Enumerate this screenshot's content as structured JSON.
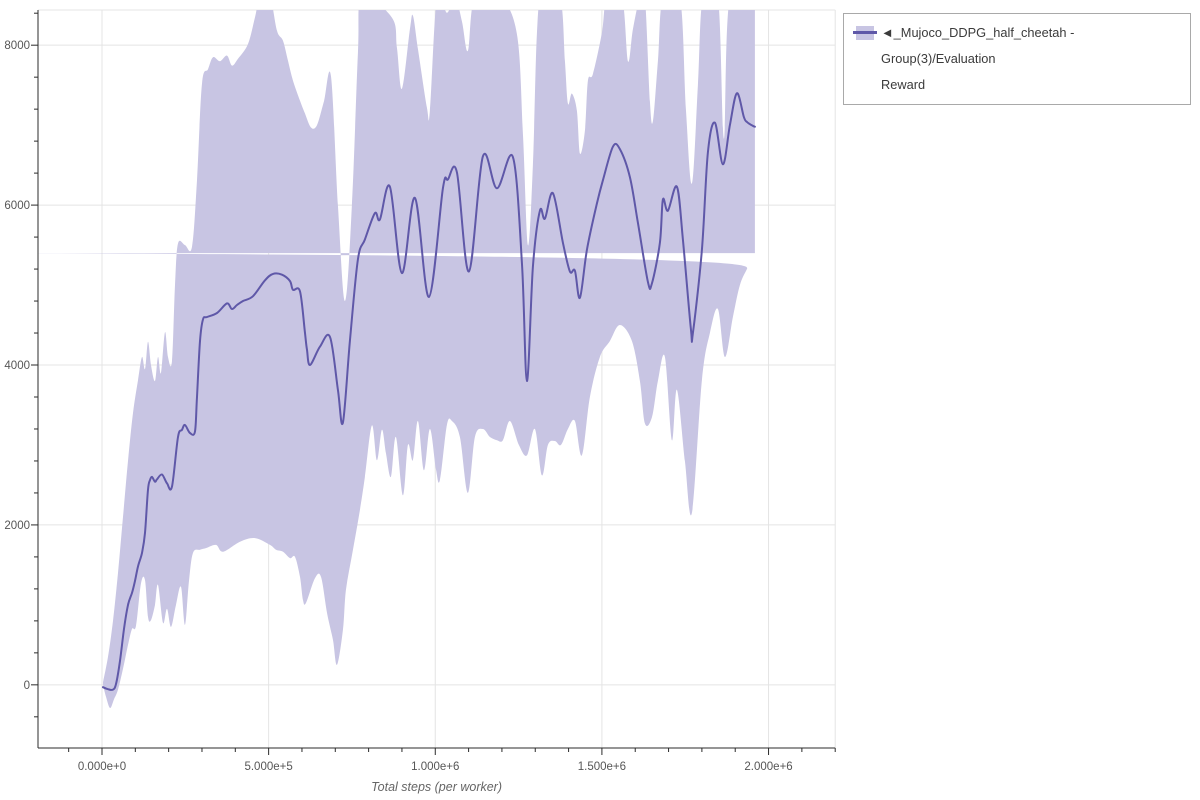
{
  "chart": {
    "background": "#ffffff",
    "grid_color": "#e4e4e4",
    "spine_color": "#2b2b2b",
    "tick_label_color": "#565656",
    "axis_title_color": "#666666"
  },
  "legend": {
    "label_lines": [
      "◄_Mujoco_DDPG_half_cheetah - Group(3)/Evaluation",
      "Reward"
    ],
    "full_label": "◄_Mujoco_DDPG_half_cheetah - Group(3)/Evaluation Reward",
    "border_color": "#a9a9a9"
  },
  "chart_data": {
    "type": "line",
    "title": "",
    "xlabel": "Total steps (per worker)",
    "ylabel": "",
    "xlim": [
      -192000,
      2200000
    ],
    "ylim": [
      -790,
      8440
    ],
    "x_ticks_major": [
      0,
      500000,
      1000000,
      1500000,
      2000000
    ],
    "x_tick_labels": [
      "0.000e+0",
      "5.000e+5",
      "1.000e+6",
      "1.500e+6",
      "2.000e+6"
    ],
    "x_minor_step": 100000,
    "y_ticks_major": [
      0,
      2000,
      4000,
      6000,
      8000
    ],
    "y_tick_labels": [
      "0",
      "2000",
      "4000",
      "6000",
      "8000"
    ],
    "y_minor_step": 400,
    "grid": "major",
    "legend_position": "outside-top-right",
    "series": [
      {
        "name": "◄_Mujoco_DDPG_half_cheetah - Group(3)/Evaluation Reward",
        "color": "#5f58a8",
        "band_color": "#c8c5e3",
        "x_unit_note": "x values in thousands of steps",
        "mean": [
          [
            3,
            -30
          ],
          [
            18,
            -55
          ],
          [
            33,
            -60
          ],
          [
            42,
            10
          ],
          [
            54,
            300
          ],
          [
            66,
            700
          ],
          [
            78,
            1000
          ],
          [
            90,
            1150
          ],
          [
            99,
            1300
          ],
          [
            108,
            1480
          ],
          [
            120,
            1650
          ],
          [
            129,
            1900
          ],
          [
            138,
            2440
          ],
          [
            144,
            2560
          ],
          [
            150,
            2600
          ],
          [
            159,
            2540
          ],
          [
            165,
            2570
          ],
          [
            180,
            2630
          ],
          [
            195,
            2520
          ],
          [
            210,
            2480
          ],
          [
            228,
            3100
          ],
          [
            240,
            3190
          ],
          [
            249,
            3250
          ],
          [
            264,
            3150
          ],
          [
            279,
            3170
          ],
          [
            285,
            3600
          ],
          [
            294,
            4300
          ],
          [
            303,
            4570
          ],
          [
            315,
            4600
          ],
          [
            345,
            4650
          ],
          [
            375,
            4770
          ],
          [
            390,
            4700
          ],
          [
            405,
            4750
          ],
          [
            423,
            4800
          ],
          [
            453,
            4860
          ],
          [
            489,
            5060
          ],
          [
            513,
            5140
          ],
          [
            540,
            5130
          ],
          [
            564,
            5050
          ],
          [
            573,
            4940
          ],
          [
            594,
            4920
          ],
          [
            609,
            4400
          ],
          [
            615,
            4190
          ],
          [
            624,
            4000
          ],
          [
            654,
            4230
          ],
          [
            684,
            4350
          ],
          [
            708,
            3690
          ],
          [
            723,
            3280
          ],
          [
            744,
            4300
          ],
          [
            768,
            5320
          ],
          [
            789,
            5570
          ],
          [
            819,
            5900
          ],
          [
            834,
            5820
          ],
          [
            864,
            6230
          ],
          [
            900,
            5150
          ],
          [
            939,
            6090
          ],
          [
            981,
            4850
          ],
          [
            1023,
            6210
          ],
          [
            1038,
            6320
          ],
          [
            1065,
            6410
          ],
          [
            1101,
            5170
          ],
          [
            1143,
            6610
          ],
          [
            1185,
            6210
          ],
          [
            1233,
            6600
          ],
          [
            1260,
            5280
          ],
          [
            1275,
            3800
          ],
          [
            1293,
            5230
          ],
          [
            1314,
            5930
          ],
          [
            1329,
            5830
          ],
          [
            1353,
            6150
          ],
          [
            1383,
            5530
          ],
          [
            1404,
            5170
          ],
          [
            1419,
            5180
          ],
          [
            1434,
            4840
          ],
          [
            1455,
            5440
          ],
          [
            1485,
            6020
          ],
          [
            1503,
            6310
          ],
          [
            1533,
            6730
          ],
          [
            1554,
            6700
          ],
          [
            1584,
            6350
          ],
          [
            1608,
            5780
          ],
          [
            1638,
            5040
          ],
          [
            1650,
            5020
          ],
          [
            1674,
            5530
          ],
          [
            1683,
            6070
          ],
          [
            1698,
            5930
          ],
          [
            1725,
            6230
          ],
          [
            1743,
            5570
          ],
          [
            1767,
            4450
          ],
          [
            1773,
            4400
          ],
          [
            1800,
            5440
          ],
          [
            1818,
            6660
          ],
          [
            1839,
            7030
          ],
          [
            1863,
            6510
          ],
          [
            1884,
            7000
          ],
          [
            1905,
            7400
          ],
          [
            1926,
            7100
          ],
          [
            1935,
            7040
          ],
          [
            1953,
            6990
          ],
          [
            1959,
            6980
          ]
        ],
        "band_upper": [
          [
            3,
            30
          ],
          [
            18,
            350
          ],
          [
            33,
            800
          ],
          [
            48,
            1400
          ],
          [
            63,
            2100
          ],
          [
            78,
            2800
          ],
          [
            93,
            3400
          ],
          [
            108,
            3810
          ],
          [
            120,
            4100
          ],
          [
            129,
            3950
          ],
          [
            138,
            4290
          ],
          [
            147,
            4000
          ],
          [
            159,
            3800
          ],
          [
            168,
            4100
          ],
          [
            177,
            3900
          ],
          [
            189,
            4410
          ],
          [
            198,
            4100
          ],
          [
            210,
            4050
          ],
          [
            219,
            5000
          ],
          [
            228,
            5520
          ],
          [
            249,
            5500
          ],
          [
            270,
            5480
          ],
          [
            285,
            6310
          ],
          [
            300,
            7520
          ],
          [
            318,
            7700
          ],
          [
            333,
            7850
          ],
          [
            354,
            7800
          ],
          [
            375,
            7870
          ],
          [
            390,
            7745
          ],
          [
            408,
            7830
          ],
          [
            438,
            8015
          ],
          [
            459,
            8350
          ],
          [
            474,
            8600
          ],
          [
            504,
            8600
          ],
          [
            525,
            8180
          ],
          [
            543,
            8055
          ],
          [
            558,
            7805
          ],
          [
            573,
            7555
          ],
          [
            594,
            7305
          ],
          [
            609,
            7145
          ],
          [
            627,
            6970
          ],
          [
            645,
            7000
          ],
          [
            666,
            7300
          ],
          [
            687,
            7610
          ],
          [
            708,
            6000
          ],
          [
            729,
            4800
          ],
          [
            750,
            6000
          ],
          [
            768,
            7895
          ],
          [
            780,
            8600
          ],
          [
            870,
            8345
          ],
          [
            885,
            7970
          ],
          [
            900,
            7455
          ],
          [
            924,
            8200
          ],
          [
            933,
            8370
          ],
          [
            948,
            7955
          ],
          [
            975,
            7220
          ],
          [
            984,
            7180
          ],
          [
            1005,
            8600
          ],
          [
            1035,
            8405
          ],
          [
            1059,
            8600
          ],
          [
            1080,
            8300
          ],
          [
            1098,
            7930
          ],
          [
            1119,
            8600
          ],
          [
            1194,
            8600
          ],
          [
            1245,
            8140
          ],
          [
            1263,
            6895
          ],
          [
            1278,
            5500
          ],
          [
            1293,
            6500
          ],
          [
            1305,
            8140
          ],
          [
            1320,
            8600
          ],
          [
            1374,
            8600
          ],
          [
            1389,
            7805
          ],
          [
            1398,
            7270
          ],
          [
            1410,
            7395
          ],
          [
            1425,
            7180
          ],
          [
            1434,
            6645
          ],
          [
            1449,
            6930
          ],
          [
            1458,
            7555
          ],
          [
            1473,
            7640
          ],
          [
            1500,
            8155
          ],
          [
            1515,
            8600
          ],
          [
            1560,
            8600
          ],
          [
            1578,
            7800
          ],
          [
            1593,
            8200
          ],
          [
            1614,
            8600
          ],
          [
            1629,
            8600
          ],
          [
            1644,
            7300
          ],
          [
            1653,
            7050
          ],
          [
            1668,
            7800
          ],
          [
            1683,
            8600
          ],
          [
            1734,
            8600
          ],
          [
            1752,
            7200
          ],
          [
            1770,
            6270
          ],
          [
            1788,
            7500
          ],
          [
            1803,
            8600
          ],
          [
            1848,
            8600
          ],
          [
            1866,
            6830
          ],
          [
            1884,
            8600
          ],
          [
            1959,
            8600
          ]
        ],
        "band_lower": [
          [
            3,
            0
          ],
          [
            12,
            -150
          ],
          [
            24,
            -290
          ],
          [
            36,
            -180
          ],
          [
            48,
            -60
          ],
          [
            63,
            200
          ],
          [
            78,
            500
          ],
          [
            90,
            700
          ],
          [
            102,
            740
          ],
          [
            117,
            1270
          ],
          [
            129,
            1310
          ],
          [
            138,
            850
          ],
          [
            147,
            810
          ],
          [
            159,
            1000
          ],
          [
            168,
            1250
          ],
          [
            183,
            775
          ],
          [
            195,
            950
          ],
          [
            207,
            725
          ],
          [
            222,
            1000
          ],
          [
            237,
            1225
          ],
          [
            249,
            750
          ],
          [
            261,
            1300
          ],
          [
            273,
            1650
          ],
          [
            294,
            1690
          ],
          [
            312,
            1710
          ],
          [
            342,
            1750
          ],
          [
            363,
            1665
          ],
          [
            414,
            1790
          ],
          [
            459,
            1835
          ],
          [
            504,
            1750
          ],
          [
            522,
            1690
          ],
          [
            543,
            1665
          ],
          [
            564,
            1585
          ],
          [
            579,
            1600
          ],
          [
            594,
            1350
          ],
          [
            603,
            1060
          ],
          [
            612,
            1025
          ],
          [
            639,
            1335
          ],
          [
            657,
            1350
          ],
          [
            675,
            900
          ],
          [
            693,
            560
          ],
          [
            705,
            250
          ],
          [
            723,
            685
          ],
          [
            732,
            1185
          ],
          [
            753,
            1685
          ],
          [
            774,
            2185
          ],
          [
            789,
            2600
          ],
          [
            810,
            3245
          ],
          [
            825,
            2810
          ],
          [
            840,
            3190
          ],
          [
            852,
            2900
          ],
          [
            867,
            2600
          ],
          [
            882,
            3100
          ],
          [
            903,
            2370
          ],
          [
            918,
            3000
          ],
          [
            933,
            2810
          ],
          [
            948,
            3300
          ],
          [
            966,
            2685
          ],
          [
            984,
            3200
          ],
          [
            1002,
            2700
          ],
          [
            1014,
            2560
          ],
          [
            1035,
            3250
          ],
          [
            1050,
            3300
          ],
          [
            1074,
            3100
          ],
          [
            1098,
            2400
          ],
          [
            1119,
            3100
          ],
          [
            1143,
            3200
          ],
          [
            1164,
            3100
          ],
          [
            1185,
            3060
          ],
          [
            1203,
            3060
          ],
          [
            1224,
            3300
          ],
          [
            1251,
            3000
          ],
          [
            1275,
            2870
          ],
          [
            1299,
            3200
          ],
          [
            1320,
            2620
          ],
          [
            1338,
            3000
          ],
          [
            1359,
            3050
          ],
          [
            1377,
            3000
          ],
          [
            1398,
            3200
          ],
          [
            1419,
            3300
          ],
          [
            1440,
            2870
          ],
          [
            1464,
            3600
          ],
          [
            1494,
            4100
          ],
          [
            1524,
            4300
          ],
          [
            1554,
            4500
          ],
          [
            1590,
            4300
          ],
          [
            1614,
            3800
          ],
          [
            1629,
            3270
          ],
          [
            1650,
            3345
          ],
          [
            1668,
            3800
          ],
          [
            1689,
            4100
          ],
          [
            1710,
            3060
          ],
          [
            1725,
            3690
          ],
          [
            1749,
            2800
          ],
          [
            1770,
            2150
          ],
          [
            1800,
            3810
          ],
          [
            1824,
            4400
          ],
          [
            1848,
            4700
          ],
          [
            1869,
            4100
          ],
          [
            1893,
            4600
          ],
          [
            1914,
            5000
          ],
          [
            1935,
            5200
          ],
          [
            1959,
            5400
          ]
        ]
      }
    ]
  }
}
